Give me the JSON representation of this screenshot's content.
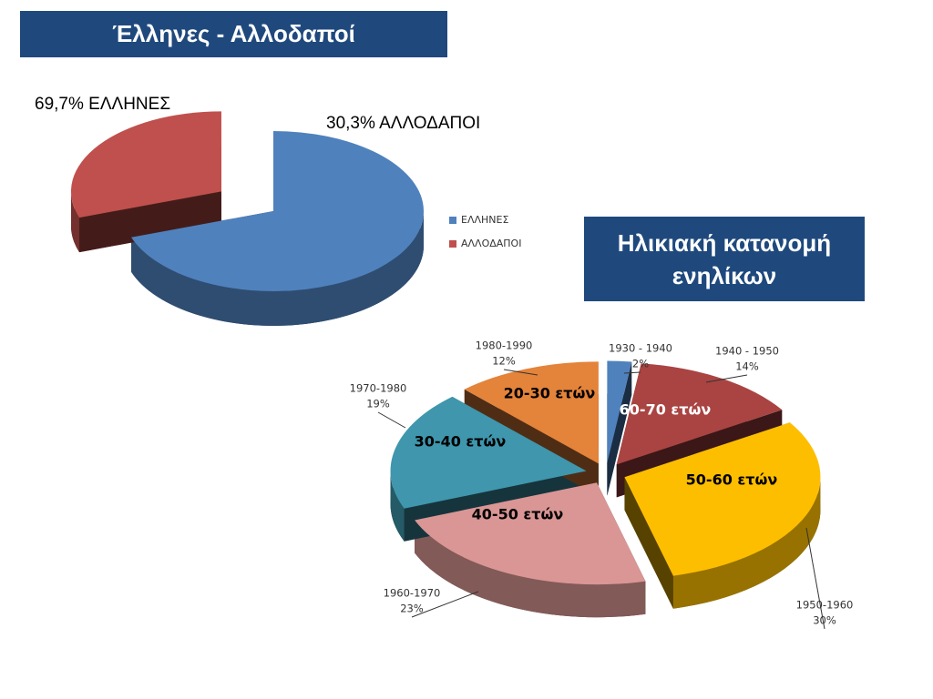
{
  "chart_data": [
    {
      "type": "pie",
      "title": "Έλληνες - Αλλοδαποί",
      "categories": [
        "ΕΛΛΗΝΕΣ",
        "ΑΛΛΟΔΑΠΟΙ"
      ],
      "values": [
        69.7,
        30.3
      ],
      "value_labels": [
        "69,7% ΕΛΛΗΝΕΣ",
        "30,3% ΑΛΛΟΔΑΠΟΙ"
      ],
      "colors": [
        "#4f81bd",
        "#c0504d"
      ],
      "legend": "right"
    },
    {
      "type": "pie",
      "title": "Ηλικιακή κατανομή ενηλίκων",
      "categories": [
        "1930 - 1940",
        "1940 - 1950",
        "1950-1960",
        "1960-1970",
        "1970-1980",
        "1980-1990"
      ],
      "values": [
        2,
        14,
        30,
        23,
        19,
        12
      ],
      "value_labels": [
        "2%",
        "14%",
        "30%",
        "23%",
        "19%",
        "12%"
      ],
      "inner_labels": [
        null,
        "60-70  ετών",
        "50-60  ετών",
        "40-50  ετών",
        "30-40  ετών",
        "20-30  ετών"
      ],
      "colors": [
        "#4f81bd",
        "#a94442",
        "#fdbe00",
        "#d99694",
        "#3f96ad",
        "#e4833a"
      ]
    }
  ]
}
